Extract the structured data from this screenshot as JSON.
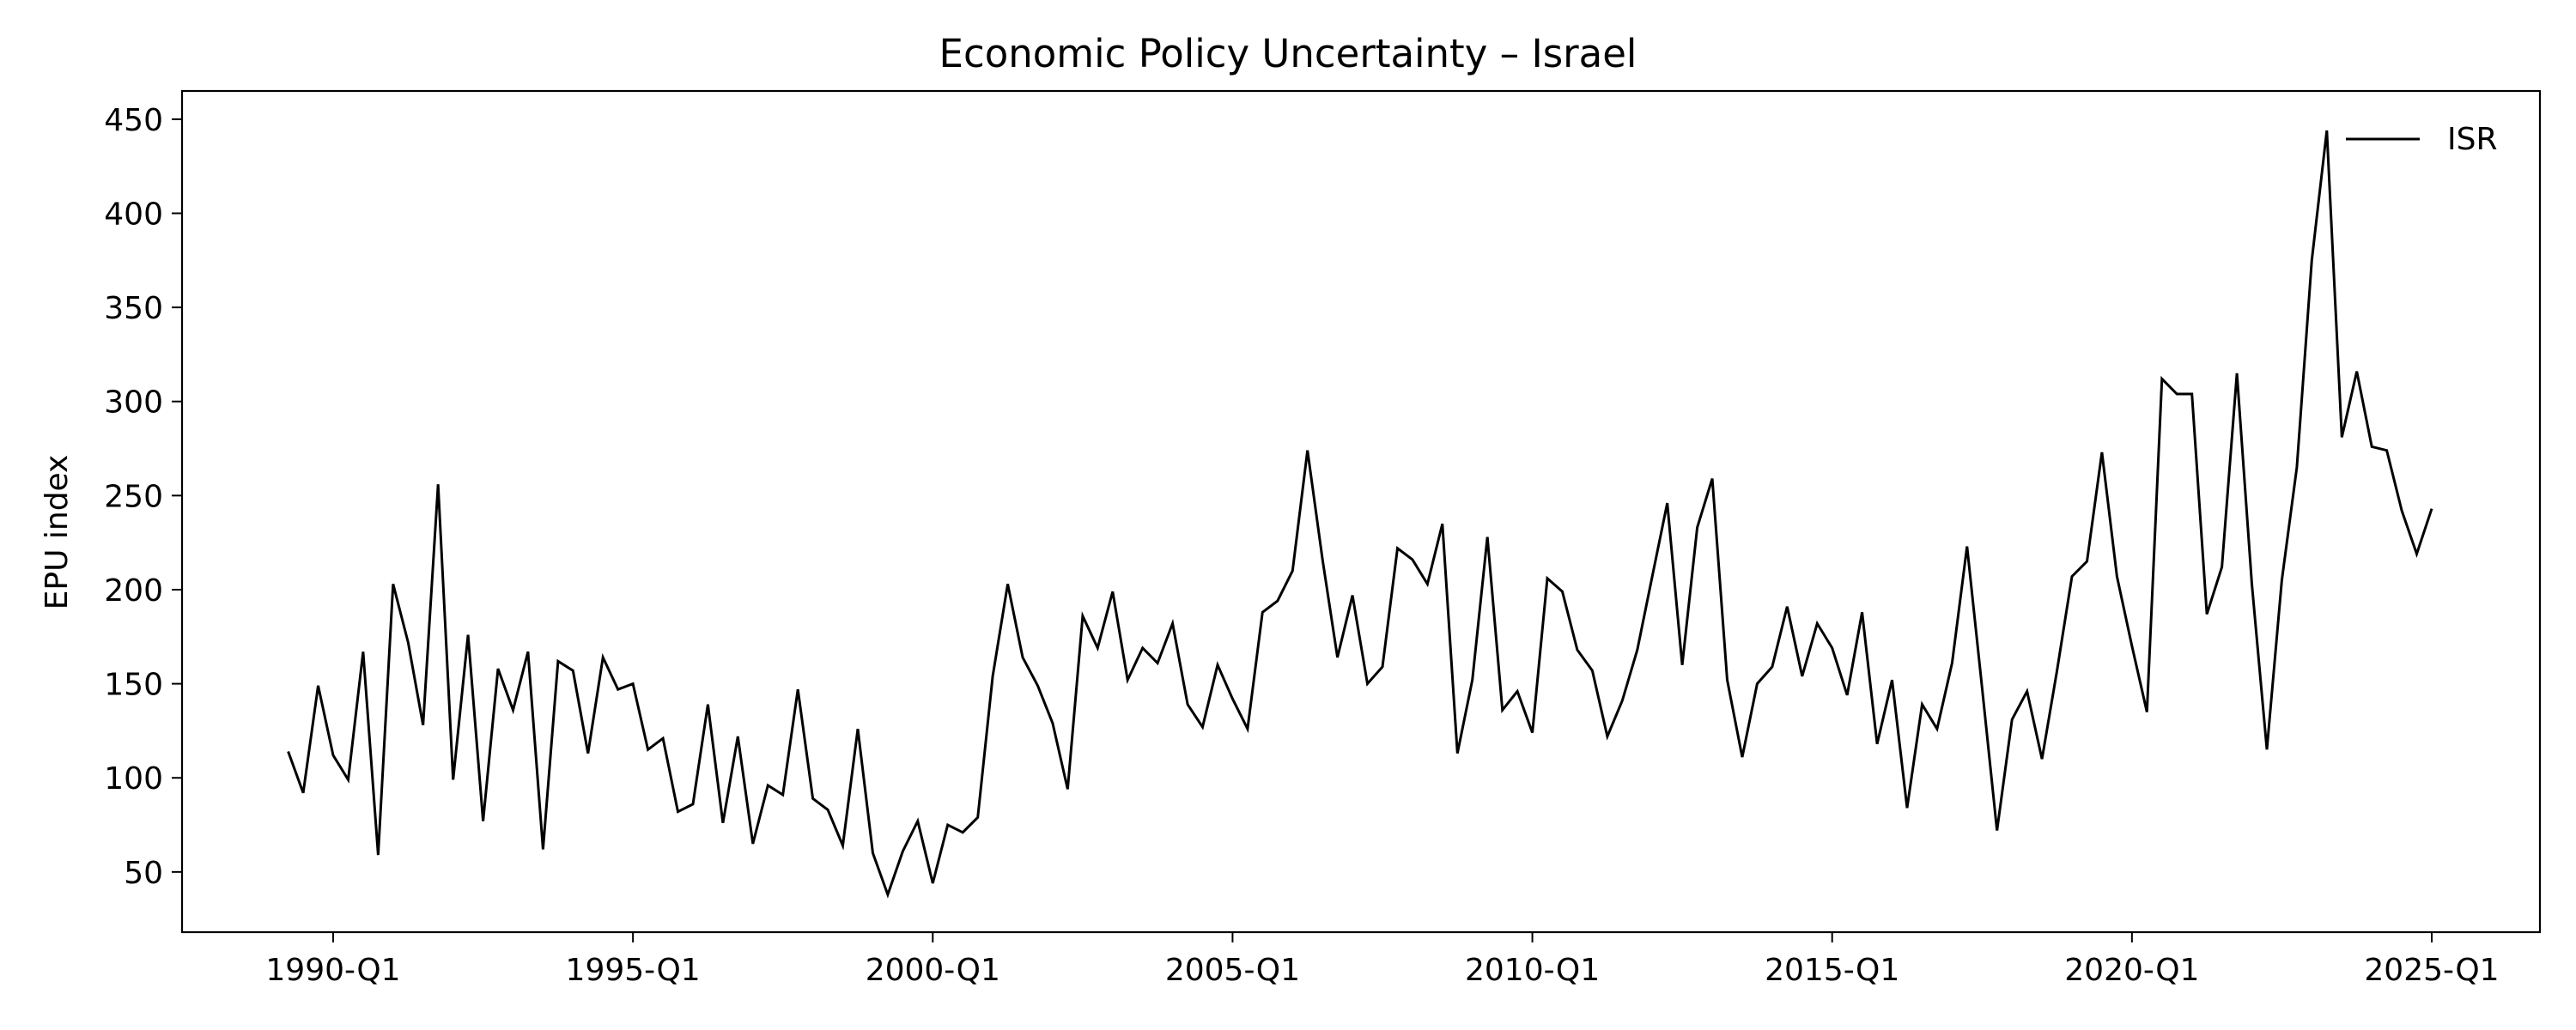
{
  "chart_data": {
    "type": "line",
    "title": "Economic Policy Uncertainty – Israel",
    "xlabel": "",
    "ylabel": "EPU index",
    "x_start": "1989-Q2",
    "x_ticks": [
      "1990-Q1",
      "1995-Q1",
      "2000-Q1",
      "2005-Q1",
      "2010-Q1",
      "2015-Q1",
      "2020-Q1",
      "2025-Q1"
    ],
    "y_ticks": [
      50,
      100,
      150,
      200,
      250,
      300,
      350,
      400,
      450
    ],
    "ylim": [
      18,
      465
    ],
    "grid": false,
    "legend_position": "top-right",
    "series": [
      {
        "name": "ISR",
        "color": "#000000",
        "values": [
          114,
          92,
          149,
          112,
          99,
          167,
          59,
          203,
          172,
          128,
          256,
          99,
          176,
          77,
          158,
          136,
          167,
          62,
          162,
          157,
          113,
          164,
          147,
          150,
          115,
          121,
          82,
          86,
          139,
          76,
          122,
          65,
          96,
          91,
          147,
          89,
          83,
          64,
          126,
          60,
          38,
          61,
          77,
          44,
          75,
          71,
          79,
          154,
          203,
          164,
          149,
          129,
          94,
          186,
          169,
          199,
          152,
          169,
          161,
          182,
          139,
          127,
          160,
          142,
          126,
          188,
          194,
          210,
          274,
          216,
          164,
          197,
          150,
          159,
          222,
          216,
          203,
          235,
          113,
          152,
          228,
          136,
          146,
          124,
          206,
          199,
          168,
          157,
          122,
          141,
          168,
          207,
          246,
          160,
          233,
          259,
          152,
          111,
          150,
          159,
          191,
          154,
          182,
          169,
          144,
          188,
          118,
          152,
          84,
          139,
          126,
          161,
          223,
          148,
          72,
          131,
          146,
          110,
          157,
          207,
          215,
          273,
          207,
          170,
          135,
          312,
          304,
          304,
          187,
          212,
          315,
          203,
          115,
          205,
          265,
          375,
          444,
          281,
          316,
          276,
          274,
          242,
          219,
          243
        ]
      }
    ]
  }
}
